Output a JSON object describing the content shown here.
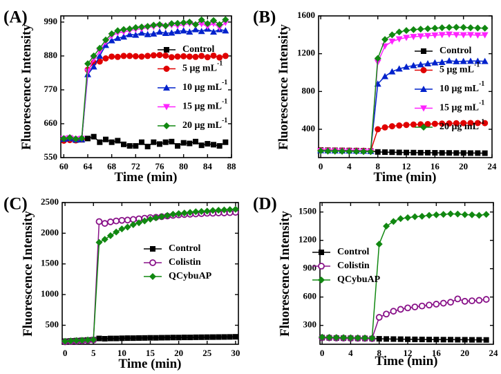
{
  "chart_data": [
    {
      "panel_label": "(A)",
      "type": "line",
      "xlabel": "Time (min)",
      "ylabel": "Fluorescence Intensity",
      "xlim": [
        59.5,
        88
      ],
      "ylim": [
        550,
        1010
      ],
      "xticks": [
        60,
        64,
        68,
        72,
        76,
        80,
        84,
        88
      ],
      "yticks": [
        550,
        660,
        770,
        880,
        990
      ],
      "x": [
        60,
        61,
        62,
        63,
        64,
        65,
        66,
        67,
        68,
        69,
        70,
        71,
        72,
        73,
        74,
        75,
        76,
        77,
        78,
        79,
        80,
        81,
        82,
        83,
        84,
        85,
        86,
        87
      ],
      "series": [
        {
          "name": "Control",
          "color": "#000000",
          "marker": "square",
          "values": [
            610,
            612,
            607,
            608,
            612,
            618,
            600,
            609,
            600,
            605,
            593,
            588,
            588,
            600,
            586,
            600,
            594,
            600,
            602,
            588,
            598,
            596,
            602,
            590,
            595,
            592,
            588,
            600
          ]
        },
        {
          "name": "5 μg mL",
          "sup": "-1",
          "color": "#e00000",
          "marker": "circle",
          "values": [
            605,
            607,
            606,
            609,
            835,
            858,
            862,
            872,
            878,
            877,
            880,
            880,
            879,
            878,
            880,
            882,
            883,
            881,
            876,
            878,
            879,
            878,
            877,
            880,
            876,
            881,
            875,
            880
          ]
        },
        {
          "name": "10 μg mL",
          "sup": "-1",
          "color": "#0022cc",
          "marker": "triangle",
          "values": [
            610,
            612,
            608,
            609,
            820,
            845,
            880,
            915,
            930,
            938,
            942,
            950,
            948,
            955,
            950,
            952,
            958,
            954,
            955,
            960,
            962,
            958,
            966,
            960,
            968,
            958,
            966,
            962
          ]
        },
        {
          "name": "15 μg mL",
          "sup": "-1",
          "color": "#ff22ff",
          "marker": "triangle-down",
          "values": [
            612,
            614,
            610,
            612,
            830,
            870,
            895,
            925,
            945,
            955,
            958,
            962,
            966,
            968,
            972,
            975,
            978,
            975,
            980,
            978,
            982,
            985,
            980,
            984,
            976,
            985,
            972,
            988
          ]
        },
        {
          "name": "20 μg mL",
          "sup": "-1",
          "color": "#118811",
          "marker": "diamond",
          "values": [
            612,
            615,
            611,
            613,
            855,
            880,
            905,
            932,
            952,
            962,
            966,
            968,
            972,
            974,
            976,
            980,
            982,
            978,
            985,
            986,
            988,
            990,
            982,
            997,
            985,
            995,
            982,
            998
          ]
        }
      ]
    },
    {
      "panel_label": "(B)",
      "type": "line",
      "xlabel": "Time (min)",
      "ylabel": "Fluorescence Intensity",
      "xlim": [
        -0.3,
        24
      ],
      "ylim": [
        100,
        1600
      ],
      "xticks": [
        0,
        4,
        8,
        12,
        16,
        20,
        24
      ],
      "yticks": [
        400,
        800,
        1200,
        1600
      ],
      "x": [
        0,
        1,
        2,
        3,
        4,
        5,
        6,
        7,
        8,
        9,
        10,
        11,
        12,
        13,
        14,
        15,
        16,
        17,
        18,
        19,
        20,
        21,
        22,
        23
      ],
      "series": [
        {
          "name": "Control",
          "color": "#000000",
          "marker": "square",
          "values": [
            180,
            178,
            177,
            176,
            175,
            174,
            172,
            170,
            160,
            158,
            157,
            155,
            154,
            153,
            152,
            152,
            151,
            150,
            150,
            149,
            149,
            148,
            148,
            147
          ]
        },
        {
          "name": "5 μg mL",
          "sup": "-1",
          "color": "#e00000",
          "marker": "circle",
          "values": [
            178,
            177,
            176,
            175,
            174,
            173,
            172,
            170,
            400,
            420,
            432,
            440,
            446,
            450,
            452,
            455,
            458,
            460,
            462,
            464,
            465,
            466,
            466,
            465
          ]
        },
        {
          "name": "10 μg mL",
          "sup": "-1",
          "color": "#0022cc",
          "marker": "triangle",
          "values": [
            176,
            175,
            174,
            173,
            172,
            171,
            170,
            168,
            880,
            960,
            1010,
            1040,
            1060,
            1075,
            1085,
            1095,
            1105,
            1110,
            1125,
            1118,
            1120,
            1122,
            1122,
            1120
          ]
        },
        {
          "name": "15  μg mL",
          "sup": "-1",
          "color": "#ff22ff",
          "marker": "triangle-down",
          "values": [
            172,
            171,
            170,
            169,
            168,
            167,
            166,
            165,
            1110,
            1280,
            1330,
            1355,
            1370,
            1380,
            1385,
            1390,
            1395,
            1400,
            1405,
            1400,
            1398,
            1400,
            1395,
            1398
          ]
        },
        {
          "name": "20  μg mL",
          "sup": "-1",
          "color": "#118811",
          "marker": "diamond",
          "values": [
            170,
            169,
            168,
            167,
            166,
            165,
            164,
            163,
            1150,
            1350,
            1400,
            1430,
            1445,
            1455,
            1460,
            1465,
            1470,
            1475,
            1478,
            1480,
            1478,
            1475,
            1472,
            1470
          ]
        }
      ]
    },
    {
      "panel_label": "(C)",
      "type": "line",
      "xlabel": "Time (min)",
      "ylabel": "Fluorescence Intensity",
      "xlim": [
        -0.5,
        30.5
      ],
      "ylim": [
        190,
        2500
      ],
      "xticks": [
        0,
        5,
        10,
        15,
        20,
        25,
        30
      ],
      "yticks": [
        500,
        1000,
        1500,
        2000,
        2500
      ],
      "x": [
        0,
        1,
        2,
        3,
        4,
        5,
        6,
        7,
        8,
        9,
        10,
        11,
        12,
        13,
        14,
        15,
        16,
        17,
        18,
        19,
        20,
        21,
        22,
        23,
        24,
        25,
        26,
        27,
        28,
        29,
        30
      ],
      "series": [
        {
          "name": "Control",
          "color": "#000000",
          "marker": "square",
          "values": [
            240,
            245,
            250,
            255,
            260,
            265,
            285,
            280,
            285,
            285,
            288,
            290,
            290,
            292,
            293,
            295,
            295,
            297,
            298,
            300,
            300,
            302,
            302,
            304,
            305,
            306,
            307,
            308,
            309,
            310,
            312
          ]
        },
        {
          "name": "Colistin",
          "color": "#881188",
          "marker": "circle-open",
          "values": [
            230,
            235,
            240,
            245,
            250,
            260,
            2190,
            2160,
            2185,
            2200,
            2210,
            2215,
            2225,
            2235,
            2245,
            2255,
            2260,
            2270,
            2280,
            2290,
            2300,
            2305,
            2310,
            2315,
            2320,
            2325,
            2325,
            2330,
            2330,
            2335,
            2340
          ]
        },
        {
          "name": "QCybuAP",
          "color": "#118811",
          "marker": "diamond",
          "values": [
            240,
            245,
            250,
            255,
            260,
            265,
            1850,
            1900,
            1960,
            2020,
            2070,
            2100,
            2140,
            2170,
            2200,
            2230,
            2250,
            2270,
            2290,
            2310,
            2320,
            2330,
            2340,
            2350,
            2355,
            2360,
            2370,
            2375,
            2380,
            2385,
            2390
          ]
        }
      ]
    },
    {
      "panel_label": "(D)",
      "type": "line",
      "xlabel": "Time (min)",
      "ylabel": "Fluorescence Intensity",
      "xlim": [
        -0.3,
        24
      ],
      "ylim": [
        100,
        1600
      ],
      "xticks": [
        0,
        4,
        8,
        12,
        16,
        20,
        24
      ],
      "yticks": [
        300,
        600,
        900,
        1200,
        1500
      ],
      "x": [
        0,
        1,
        2,
        3,
        4,
        5,
        6,
        7,
        8,
        9,
        10,
        11,
        12,
        13,
        14,
        15,
        16,
        17,
        18,
        19,
        20,
        21,
        22,
        23
      ],
      "series": [
        {
          "name": "Control",
          "color": "#000000",
          "marker": "square",
          "values": [
            170,
            168,
            166,
            165,
            164,
            163,
            162,
            160,
            158,
            156,
            155,
            154,
            153,
            152,
            151,
            150,
            150,
            149,
            149,
            148,
            148,
            147,
            147,
            146
          ]
        },
        {
          "name": "Colistin",
          "color": "#881188",
          "marker": "circle-open",
          "values": [
            170,
            168,
            166,
            165,
            164,
            163,
            162,
            160,
            385,
            420,
            450,
            470,
            485,
            495,
            505,
            515,
            525,
            535,
            545,
            580,
            555,
            560,
            565,
            575
          ]
        },
        {
          "name": "QCybuAP",
          "color": "#118811",
          "marker": "diamond",
          "values": [
            175,
            173,
            171,
            170,
            169,
            168,
            167,
            165,
            1160,
            1350,
            1400,
            1430,
            1440,
            1450,
            1455,
            1465,
            1470,
            1475,
            1480,
            1478,
            1472,
            1470,
            1465,
            1475
          ]
        }
      ]
    }
  ]
}
